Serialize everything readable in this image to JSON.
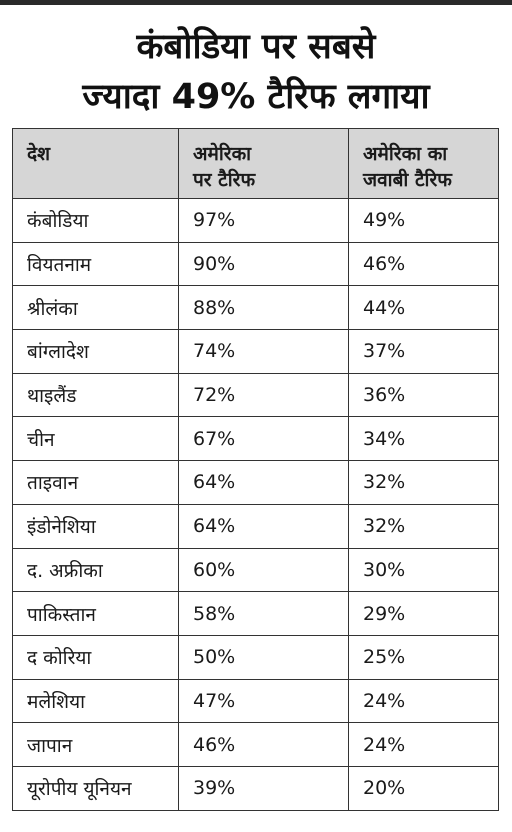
{
  "title": [
    "कंबोडिया पर सबसे",
    "ज्यादा 49% टैरिफ लगाया"
  ],
  "table": {
    "header": [
      [
        "देश"
      ],
      [
        "अमेरिका",
        "पर टैरिफ"
      ],
      [
        "अमेरिका का",
        "जवाबी टैरिफ"
      ]
    ],
    "rows": [
      [
        "कंबोडिया",
        "97%",
        "49%"
      ],
      [
        "वियतनाम",
        "90%",
        "46%"
      ],
      [
        "श्रीलंका",
        "88%",
        "44%"
      ],
      [
        "बांग्लादेश",
        "74%",
        "37%"
      ],
      [
        "थाइलैंड",
        "72%",
        "36%"
      ],
      [
        "चीन",
        "67%",
        "34%"
      ],
      [
        "ताइवान",
        "64%",
        "32%"
      ],
      [
        "इंडोनेशिया",
        "64%",
        "32%"
      ],
      [
        "द. अफ्रीका",
        "60%",
        "30%"
      ],
      [
        "पाकिस्तान",
        "58%",
        "29%"
      ],
      [
        "द कोरिया",
        "50%",
        "25%"
      ],
      [
        "मलेशिया",
        "47%",
        "24%"
      ],
      [
        "जापान",
        "46%",
        "24%"
      ],
      [
        "यूरोपीय यूनियन",
        "39%",
        "20%"
      ]
    ]
  }
}
